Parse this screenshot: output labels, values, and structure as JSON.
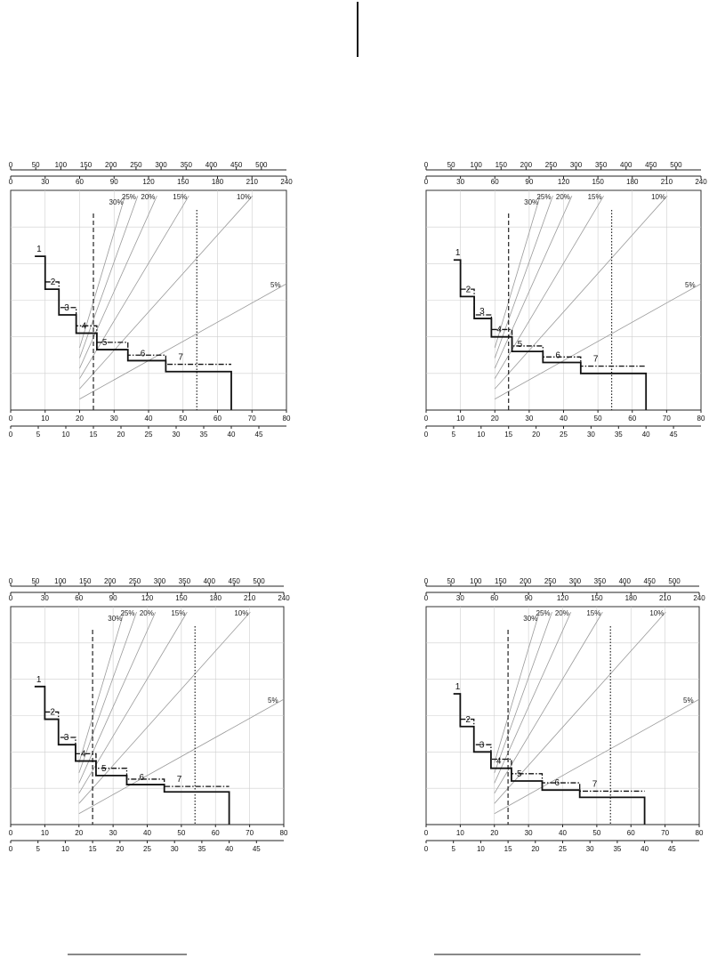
{
  "decor": {
    "line_color": "#111111",
    "grid_color": "#cfcfcf",
    "gradient_color": "#9a9a9a"
  },
  "axes_common": {
    "top_scale_1": {
      "ticks": [
        0,
        50,
        100,
        150,
        200,
        250,
        300,
        350,
        400,
        450,
        500
      ],
      "range": [
        0,
        550
      ]
    },
    "top_scale_2": {
      "ticks": [
        0,
        30,
        60,
        90,
        120,
        150,
        180,
        210,
        240
      ],
      "range": [
        0,
        240
      ]
    },
    "bottom_scale_1": {
      "ticks": [
        0,
        10,
        20,
        30,
        40,
        50,
        60,
        70,
        80
      ],
      "range": [
        0,
        80
      ]
    },
    "bottom_scale_2": {
      "ticks": [
        0,
        5,
        10,
        15,
        20,
        25,
        30,
        35,
        40,
        45
      ],
      "range": [
        0,
        50
      ]
    },
    "y_range": [
      0,
      6
    ],
    "grid": true,
    "dashed_vline_x": 24,
    "dotted_vline_x": 54,
    "gradient_labels": [
      "30%",
      "25%",
      "20%",
      "15%",
      "10%",
      "5%"
    ],
    "gradient_pct": [
      30,
      25,
      20,
      15,
      10,
      5
    ],
    "gradient_origin_x": 20
  },
  "chart_data": [
    {
      "type": "line",
      "panel": "top-left",
      "gear_labels": [
        "1",
        "2",
        "3",
        "4",
        "5",
        "6",
        "7"
      ],
      "solid_steps": [
        {
          "x": [
            7,
            10
          ],
          "y": 4.2
        },
        {
          "x": [
            10,
            14
          ],
          "y": 3.3
        },
        {
          "x": [
            14,
            19
          ],
          "y": 2.6
        },
        {
          "x": [
            19,
            25
          ],
          "y": 2.1
        },
        {
          "x": [
            25,
            34
          ],
          "y": 1.65
        },
        {
          "x": [
            34,
            45
          ],
          "y": 1.35
        },
        {
          "x": [
            45,
            64
          ],
          "y": 1.05
        }
      ],
      "dashdot_steps": [
        {
          "x": [
            10,
            14
          ],
          "y": 3.5
        },
        {
          "x": [
            14,
            19
          ],
          "y": 2.8
        },
        {
          "x": [
            19,
            25
          ],
          "y": 2.3
        },
        {
          "x": [
            25,
            34
          ],
          "y": 1.85
        },
        {
          "x": [
            34,
            45
          ],
          "y": 1.5
        },
        {
          "x": [
            45,
            64
          ],
          "y": 1.25
        }
      ]
    },
    {
      "type": "line",
      "panel": "top-right",
      "gear_labels": [
        "1",
        "2",
        "3",
        "4",
        "5",
        "6",
        "7"
      ],
      "solid_steps": [
        {
          "x": [
            8,
            10
          ],
          "y": 4.1
        },
        {
          "x": [
            10,
            14
          ],
          "y": 3.1
        },
        {
          "x": [
            14,
            19
          ],
          "y": 2.5
        },
        {
          "x": [
            19,
            25
          ],
          "y": 2.0
        },
        {
          "x": [
            25,
            34
          ],
          "y": 1.6
        },
        {
          "x": [
            34,
            45
          ],
          "y": 1.3
        },
        {
          "x": [
            45,
            64
          ],
          "y": 1.0
        }
      ],
      "dashdot_steps": [
        {
          "x": [
            10,
            14
          ],
          "y": 3.3
        },
        {
          "x": [
            14,
            19
          ],
          "y": 2.6
        },
        {
          "x": [
            19,
            25
          ],
          "y": 2.2
        },
        {
          "x": [
            25,
            34
          ],
          "y": 1.75
        },
        {
          "x": [
            34,
            45
          ],
          "y": 1.45
        },
        {
          "x": [
            45,
            64
          ],
          "y": 1.2
        }
      ]
    },
    {
      "type": "line",
      "panel": "bottom-left",
      "gear_labels": [
        "1",
        "2",
        "3",
        "4",
        "5",
        "6",
        "7"
      ],
      "solid_steps": [
        {
          "x": [
            7,
            10
          ],
          "y": 3.8
        },
        {
          "x": [
            10,
            14
          ],
          "y": 2.9
        },
        {
          "x": [
            14,
            19
          ],
          "y": 2.2
        },
        {
          "x": [
            19,
            25
          ],
          "y": 1.75
        },
        {
          "x": [
            25,
            34
          ],
          "y": 1.35
        },
        {
          "x": [
            34,
            45
          ],
          "y": 1.1
        },
        {
          "x": [
            45,
            64
          ],
          "y": 0.9
        }
      ],
      "dashdot_steps": [
        {
          "x": [
            10,
            14
          ],
          "y": 3.1
        },
        {
          "x": [
            14,
            19
          ],
          "y": 2.4
        },
        {
          "x": [
            19,
            25
          ],
          "y": 1.95
        },
        {
          "x": [
            25,
            34
          ],
          "y": 1.55
        },
        {
          "x": [
            34,
            45
          ],
          "y": 1.25
        },
        {
          "x": [
            45,
            64
          ],
          "y": 1.05
        }
      ]
    },
    {
      "type": "line",
      "panel": "bottom-right",
      "gear_labels": [
        "1",
        "2",
        "3",
        "4",
        "5",
        "6",
        "7"
      ],
      "solid_steps": [
        {
          "x": [
            8,
            10
          ],
          "y": 3.6
        },
        {
          "x": [
            10,
            14
          ],
          "y": 2.7
        },
        {
          "x": [
            14,
            19
          ],
          "y": 2.0
        },
        {
          "x": [
            19,
            25
          ],
          "y": 1.55
        },
        {
          "x": [
            25,
            34
          ],
          "y": 1.2
        },
        {
          "x": [
            34,
            45
          ],
          "y": 0.95
        },
        {
          "x": [
            45,
            64
          ],
          "y": 0.75
        }
      ],
      "dashdot_steps": [
        {
          "x": [
            10,
            14
          ],
          "y": 2.9
        },
        {
          "x": [
            14,
            19
          ],
          "y": 2.2
        },
        {
          "x": [
            19,
            25
          ],
          "y": 1.8
        },
        {
          "x": [
            25,
            34
          ],
          "y": 1.4
        },
        {
          "x": [
            34,
            45
          ],
          "y": 1.15
        },
        {
          "x": [
            45,
            64
          ],
          "y": 0.92
        }
      ]
    }
  ]
}
